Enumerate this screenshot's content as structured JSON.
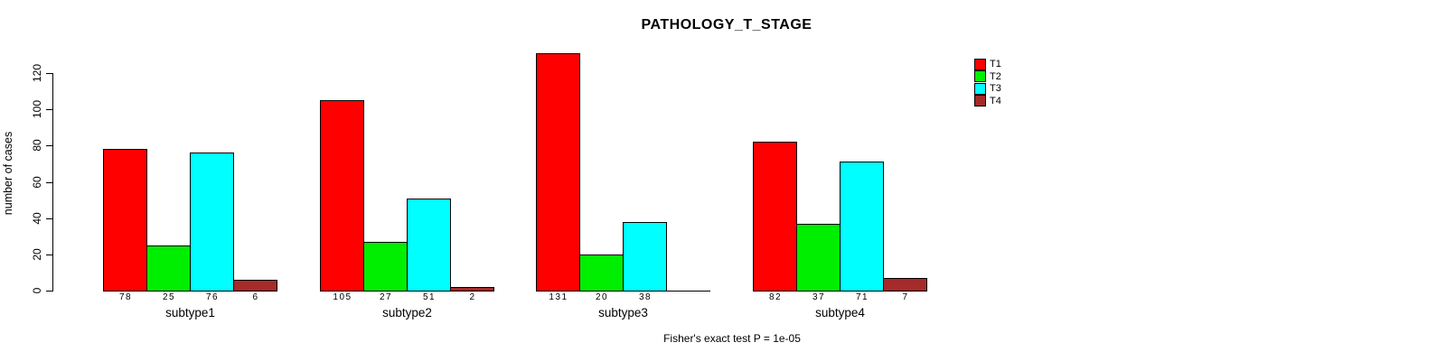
{
  "chart_data": {
    "type": "bar",
    "title": "PATHOLOGY_T_STAGE",
    "ylabel": "number of cases",
    "xlabel": "",
    "categories": [
      "subtype1",
      "subtype2",
      "subtype3",
      "subtype4"
    ],
    "series": [
      {
        "name": "T1",
        "color": "#FF0000",
        "values": [
          78,
          105,
          131,
          82
        ]
      },
      {
        "name": "T2",
        "color": "#00EE00",
        "values": [
          25,
          27,
          20,
          37
        ]
      },
      {
        "name": "T3",
        "color": "#00FFFF",
        "values": [
          76,
          51,
          38,
          71
        ]
      },
      {
        "name": "T4",
        "color": "#A52A2A",
        "values": [
          6,
          2,
          0,
          7
        ]
      }
    ],
    "bar_value_labels": [
      [
        "78",
        "25",
        "76",
        "6"
      ],
      [
        "105",
        "27",
        "51",
        "2"
      ],
      [
        "131",
        "20",
        "38",
        ""
      ],
      [
        "82",
        "37",
        "71",
        "7"
      ]
    ],
    "ylim": [
      0,
      120
    ],
    "yticks": [
      0,
      20,
      40,
      60,
      80,
      100,
      120
    ],
    "grid": false,
    "legend_position": "top-right",
    "annotation": "Fisher's exact test P = 1e-05"
  }
}
